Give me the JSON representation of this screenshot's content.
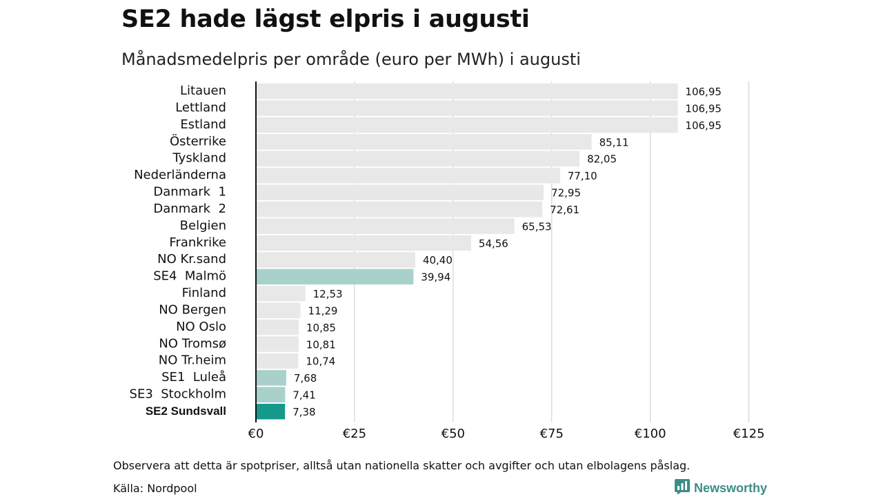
{
  "title": "SE2 hade lägst elpris i augusti",
  "subtitle": "Månadsmedelpris per område (euro per MWh) i augusti",
  "footnote": "Observera att detta är spotpriser, alltså utan nationella skatter och avgifter och utan elbolagens påslag.",
  "source": "Källa: Nordpool",
  "brand": {
    "name": "Newsworthy",
    "icon": "bar-chart-logo-icon",
    "color": "#3b8d86"
  },
  "colors": {
    "default_bar": "#e8e8e8",
    "highlight_bar": "#a9d1cb",
    "primary_bar": "#14998a",
    "grid": "#cccccc",
    "axis": "#111111"
  },
  "chart_data": {
    "type": "bar",
    "orientation": "horizontal",
    "categories": [
      "Litauen",
      "Lettland",
      "Estland",
      "Österrike",
      "Tyskland",
      "Nederländerna",
      "Danmark  1",
      "Danmark  2",
      "Belgien",
      "Frankrike",
      "NO Kr.sand",
      "SE4  Malmö",
      "Finland",
      "NO Bergen",
      "NO Oslo",
      "NO Tromsø",
      "NO Tr.heim",
      "SE1  Luleå",
      "SE3  Stockholm",
      "SE2 Sundsvall"
    ],
    "values": [
      106.95,
      106.95,
      106.95,
      85.11,
      82.05,
      77.1,
      72.95,
      72.61,
      65.53,
      54.56,
      40.4,
      39.94,
      12.53,
      11.29,
      10.85,
      10.81,
      10.74,
      7.68,
      7.41,
      7.38
    ],
    "value_labels": [
      "106,95",
      "106,95",
      "106,95",
      "85,11",
      "82,05",
      "77,10",
      "72,95",
      "72,61",
      "65,53",
      "54,56",
      "40,40",
      "39,94",
      "12,53",
      "11,29",
      "10,85",
      "10,81",
      "10,74",
      "7,68",
      "7,41",
      "7,38"
    ],
    "highlight": [
      "none",
      "none",
      "none",
      "none",
      "none",
      "none",
      "none",
      "none",
      "none",
      "none",
      "none",
      "light",
      "none",
      "none",
      "none",
      "none",
      "none",
      "light",
      "light",
      "primary"
    ],
    "bold_category": "SE2 Sundsvall",
    "xlim": [
      0,
      125
    ],
    "xticks": [
      0,
      25,
      50,
      75,
      100,
      125
    ],
    "xtick_labels": [
      "€0",
      "€25",
      "€50",
      "€75",
      "€100",
      "€125"
    ],
    "xlabel": "",
    "ylabel": "",
    "grid": "vertical",
    "legend": "none"
  }
}
